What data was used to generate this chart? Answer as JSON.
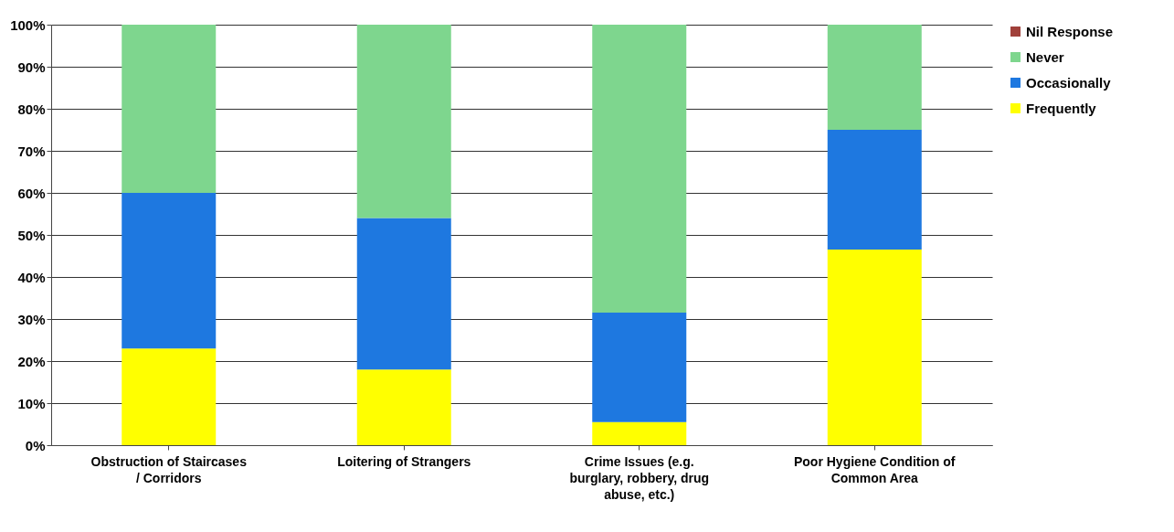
{
  "chart_data": {
    "type": "bar",
    "stacked": true,
    "categories": [
      "Obstruction of Staircases / Corridors",
      "Loitering of Strangers",
      "Crime Issues (e.g. burglary, robbery, drug abuse, etc.)",
      "Poor Hygiene Condition of Common Area"
    ],
    "series": [
      {
        "name": "Frequently",
        "color": "#ffff00",
        "values": [
          23,
          18,
          5.5,
          46.5
        ]
      },
      {
        "name": "Occasionally",
        "color": "#1e78e0",
        "values": [
          37,
          36,
          26,
          28.5
        ]
      },
      {
        "name": "Never",
        "color": "#7ed68e",
        "values": [
          40,
          46,
          68.5,
          25
        ]
      },
      {
        "name": "Nil Response",
        "color": "#a0403a",
        "values": [
          0,
          0,
          0,
          0
        ]
      }
    ],
    "ylim": [
      0,
      100
    ],
    "yticks": [
      {
        "value": 0,
        "label": "0%"
      },
      {
        "value": 10,
        "label": "10%"
      },
      {
        "value": 20,
        "label": "20%"
      },
      {
        "value": 30,
        "label": "30%"
      },
      {
        "value": 40,
        "label": "40%"
      },
      {
        "value": 50,
        "label": "50%"
      },
      {
        "value": 60,
        "label": "60%"
      },
      {
        "value": 70,
        "label": "70%"
      },
      {
        "value": 80,
        "label": "80%"
      },
      {
        "value": 90,
        "label": "90%"
      },
      {
        "value": 100,
        "label": "100%"
      }
    ],
    "grid": "y",
    "legend": "right"
  }
}
